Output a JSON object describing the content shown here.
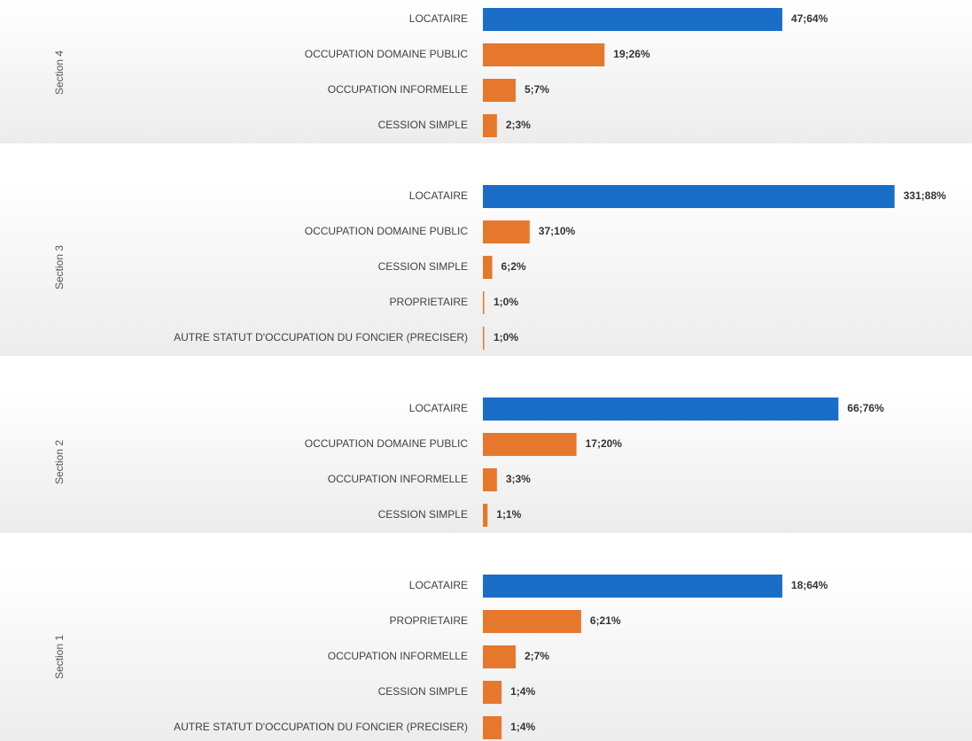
{
  "chart_data": {
    "type": "bar",
    "orientation": "horizontal",
    "xlim": [
      0,
      100
    ],
    "groups": [
      {
        "name": "Section 4",
        "categories": [
          "LOCATAIRE",
          "OCCUPATION DOMAINE PUBLIC",
          "OCCUPATION INFORMELLE",
          "CESSION SIMPLE"
        ],
        "values": [
          64,
          26,
          7,
          3
        ],
        "value_labels": [
          "47;64%",
          "19;26%",
          "5;7%",
          "2;3%"
        ],
        "colors": [
          "#1a6ec8",
          "#e6782d",
          "#e6782d",
          "#e6782d"
        ]
      },
      {
        "name": "Section 3",
        "categories": [
          "LOCATAIRE",
          "OCCUPATION DOMAINE PUBLIC",
          "CESSION SIMPLE",
          "PROPRIETAIRE",
          "AUTRE STATUT D'OCCUPATION DU FONCIER (PRECISER)"
        ],
        "values": [
          88,
          10,
          2,
          0,
          0
        ],
        "value_labels": [
          "331;88%",
          "37;10%",
          "6;2%",
          "1;0%",
          "1;0%"
        ],
        "colors": [
          "#1a6ec8",
          "#e6782d",
          "#e6782d",
          "#e6782d",
          "#e6782d"
        ]
      },
      {
        "name": "Section 2",
        "categories": [
          "LOCATAIRE",
          "OCCUPATION DOMAINE PUBLIC",
          "OCCUPATION INFORMELLE",
          "CESSION SIMPLE"
        ],
        "values": [
          76,
          20,
          3,
          1
        ],
        "value_labels": [
          "66;76%",
          "17;20%",
          "3;3%",
          "1;1%"
        ],
        "colors": [
          "#1a6ec8",
          "#e6782d",
          "#e6782d",
          "#e6782d"
        ]
      },
      {
        "name": "Section 1",
        "categories": [
          "LOCATAIRE",
          "PROPRIETAIRE",
          "OCCUPATION INFORMELLE",
          "CESSION SIMPLE",
          "AUTRE STATUT D'OCCUPATION DU FONCIER (PRECISER)"
        ],
        "values": [
          64,
          21,
          7,
          4,
          4
        ],
        "value_labels": [
          "18;64%",
          "6;21%",
          "2;7%",
          "1;4%",
          "1;4%"
        ],
        "colors": [
          "#1a6ec8",
          "#e6782d",
          "#e6782d",
          "#e6782d",
          "#e6782d"
        ]
      }
    ]
  }
}
